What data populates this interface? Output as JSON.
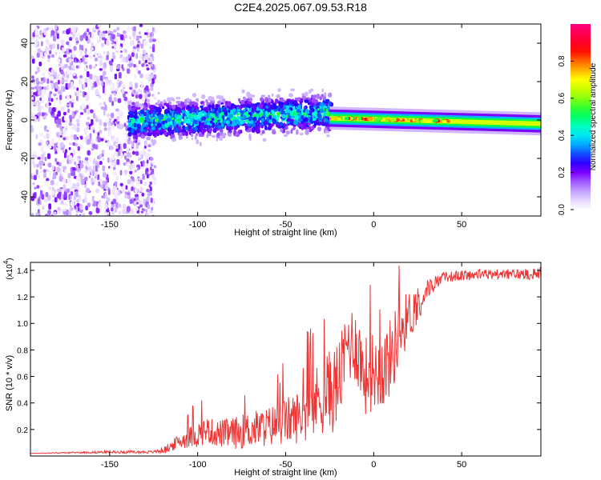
{
  "chart_data": [
    {
      "type": "heatmap",
      "title": "C2E4.2025.067.09.53.R18",
      "xlabel": "Height of straight line (km)",
      "ylabel": "Frequency (Hz)",
      "xlim": [
        -195,
        95
      ],
      "ylim": [
        -50,
        50
      ],
      "xticks": [
        -150,
        -100,
        -50,
        0,
        50
      ],
      "xtick_labels": [
        "-150",
        "-100",
        "-50",
        "0",
        "50"
      ],
      "yticks": [
        -40,
        -20,
        0,
        20,
        40
      ],
      "ytick_labels": [
        "-40",
        "-20",
        "0",
        "20",
        "40"
      ],
      "colorbar": {
        "label": "Normalized spectral amplitude",
        "range": [
          0,
          1
        ],
        "ticks": [
          0.0,
          0.2,
          0.4,
          0.6,
          0.8
        ],
        "tick_labels": [
          "0.0",
          "0.2",
          "0.4",
          "0.6",
          "0.8"
        ],
        "colors": [
          "#ffffff",
          "#c9a8ff",
          "#7a00ff",
          "#0000ff",
          "#00ffff",
          "#00ff00",
          "#ffff00",
          "#ff8000",
          "#ff0000",
          "#ff0080"
        ]
      },
      "regions": [
        {
          "x": [
            -195,
            -125
          ],
          "description": "noise",
          "amplitude": [
            0.02,
            0.2
          ]
        },
        {
          "x": [
            -140,
            -25
          ],
          "center_freq": [
            0,
            5
          ],
          "spread_hz": 8,
          "amplitude": [
            0.2,
            0.5
          ]
        },
        {
          "x": [
            -25,
            95
          ],
          "center_freq": [
            1,
            -2
          ],
          "spread_hz": 2,
          "amplitude": [
            0.5,
            0.9
          ]
        }
      ]
    },
    {
      "type": "line",
      "xlabel": "Height of straight line (km)",
      "ylabel": "SNR (10 * v/v)",
      "y_multiplier": "(x10",
      "y_multiplier_exp": "4",
      "y_multiplier_close": ")",
      "xlim": [
        -195,
        95
      ],
      "ylim": [
        0,
        1.46
      ],
      "xticks": [
        -150,
        -100,
        -50,
        0,
        50
      ],
      "xtick_labels": [
        "-150",
        "-100",
        "-50",
        "0",
        "50"
      ],
      "yticks": [
        0.2,
        0.4,
        0.6,
        0.8,
        1.0,
        1.2,
        1.4
      ],
      "ytick_labels": [
        "0.2",
        "0.4",
        "0.6",
        "0.8",
        "1.0",
        "1.2",
        "1.4"
      ],
      "color": "#ee3333",
      "series": [
        {
          "name": "SNR",
          "x": [
            -195,
            -150,
            -125,
            -118,
            -112,
            -105,
            -100,
            -95,
            -90,
            -80,
            -70,
            -60,
            -50,
            -42,
            -35,
            -30,
            -25,
            -22,
            -18,
            -15,
            -10,
            -5,
            0,
            5,
            10,
            15,
            20,
            25,
            30,
            35,
            40,
            50,
            60,
            70,
            80,
            95
          ],
          "y": [
            0.02,
            0.03,
            0.03,
            0.05,
            0.1,
            0.14,
            0.16,
            0.2,
            0.17,
            0.17,
            0.2,
            0.22,
            0.26,
            0.3,
            0.37,
            0.45,
            0.5,
            0.5,
            0.65,
            0.85,
            0.85,
            0.6,
            0.65,
            0.65,
            0.75,
            0.95,
            1.05,
            1.15,
            1.25,
            1.31,
            1.35,
            1.36,
            1.37,
            1.37,
            1.37,
            1.38
          ],
          "noise": [
            0.0,
            0.01,
            0.01,
            0.03,
            0.05,
            0.08,
            0.1,
            0.1,
            0.1,
            0.12,
            0.14,
            0.15,
            0.18,
            0.2,
            0.25,
            0.3,
            0.3,
            0.35,
            0.3,
            0.3,
            0.3,
            0.3,
            0.3,
            0.3,
            0.3,
            0.25,
            0.2,
            0.15,
            0.08,
            0.05,
            0.04,
            0.04,
            0.04,
            0.04,
            0.04,
            0.05
          ]
        }
      ]
    }
  ]
}
